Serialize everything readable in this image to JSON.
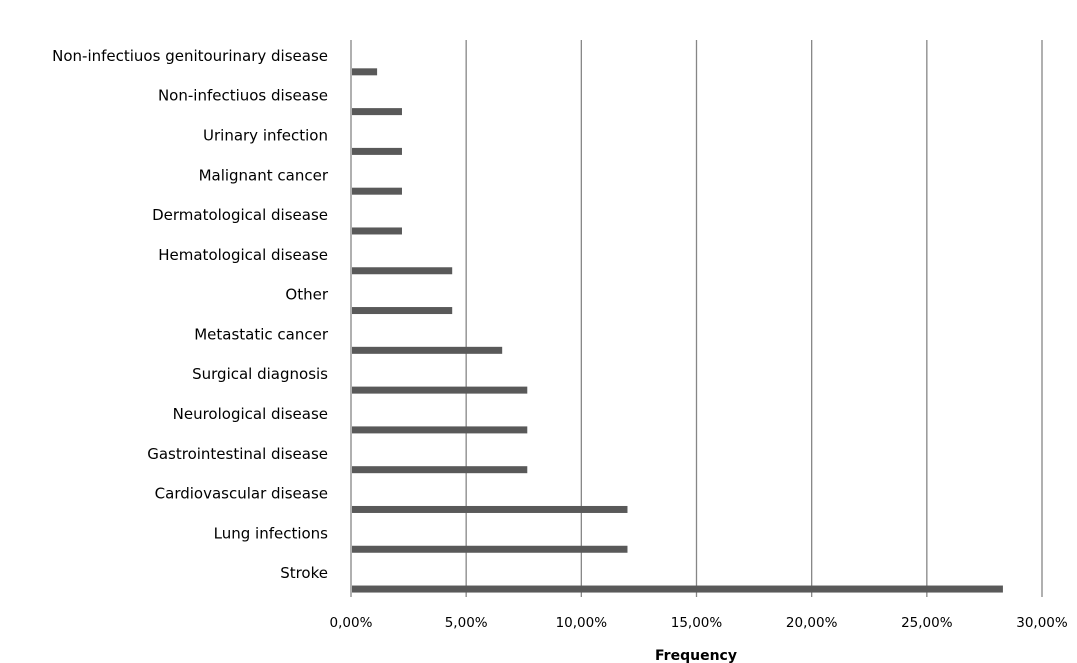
{
  "chart_data": {
    "type": "bar",
    "orientation": "horizontal",
    "categories": [
      "Non-infectiuos genitourinary disease",
      "Non-infectiuos disease",
      "Urinary infection",
      "Malignant cancer",
      "Dermatological disease",
      "Hematological disease",
      "Other",
      "Metastatic cancer",
      "Surgical diagnosis",
      "Neurological disease",
      "Gastrointestinal disease",
      "Cardiovascular disease",
      "Lung infections",
      "Stroke"
    ],
    "values": [
      1.09,
      2.17,
      2.17,
      2.17,
      2.17,
      4.35,
      4.35,
      6.52,
      7.61,
      7.61,
      7.61,
      11.96,
      11.96,
      28.26
    ],
    "value_unit": "%",
    "xlim": [
      0,
      30
    ],
    "xticks": [
      0,
      5,
      10,
      15,
      20,
      25,
      30
    ],
    "xtick_labels": [
      "0,00%",
      "5,00%",
      "10,00%",
      "15,00%",
      "20,00%",
      "25,00%",
      "30,00%"
    ],
    "title": "",
    "xlabel": "Frequency",
    "ylabel": "",
    "grid": "vertical",
    "legend": "none",
    "colors": {
      "bar": "#595959",
      "grid": "#868686",
      "axis": "#868686",
      "text": "#000000"
    }
  }
}
